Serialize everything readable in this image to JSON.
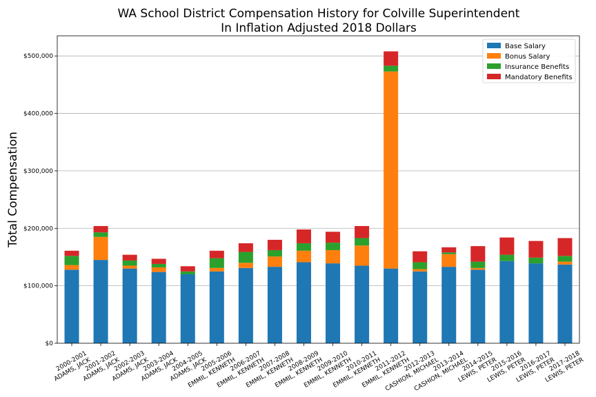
{
  "chart_data": {
    "type": "bar",
    "stacked": true,
    "title": "WA School District Compensation History for Colville Superintendent",
    "subtitle": "In Inflation Adjusted 2018 Dollars",
    "xlabel": "",
    "ylabel": "Total Compensation",
    "ylim": [
      0,
      535000
    ],
    "yticks": [
      0,
      100000,
      200000,
      300000,
      400000,
      500000
    ],
    "ytick_labels": [
      "$0",
      "$100,000",
      "$200,000",
      "$300,000",
      "$400,000",
      "$500,000"
    ],
    "grid": "horizontal",
    "legend_position": "top-right",
    "categories": [
      [
        "2000-2001",
        "ADAMS, JACK"
      ],
      [
        "2001-2002",
        "ADAMS, JACK"
      ],
      [
        "2002-2003",
        "ADAMS, JACK"
      ],
      [
        "2003-2004",
        "ADAMS, JACK"
      ],
      [
        "2004-2005",
        "ADAMS, JACK"
      ],
      [
        "2005-2006",
        "EMMIL, KENNETH"
      ],
      [
        "2006-2007",
        "EMMIL, KENNETH"
      ],
      [
        "2007-2008",
        "EMMIL, KENNETH"
      ],
      [
        "2008-2009",
        "EMMIL, KENNETH"
      ],
      [
        "2009-2010",
        "EMMIL, KENNETH"
      ],
      [
        "2010-2011",
        "EMMIL, KENNETH"
      ],
      [
        "2011-2012",
        "EMMIL, KENNETH"
      ],
      [
        "2012-2013",
        "CASHION, MICHAEL"
      ],
      [
        "2013-2014",
        "CASHION, MICHAEL"
      ],
      [
        "2014-2015",
        "LEWIS, PETER"
      ],
      [
        "2015-2016",
        "LEWIS, PETER"
      ],
      [
        "2016-2017",
        "LEWIS, PETER"
      ],
      [
        "2017-2018",
        "LEWIS, PETER"
      ]
    ],
    "series": [
      {
        "name": "Base Salary",
        "color": "#1f77b4",
        "values": [
          128000,
          145000,
          130000,
          124000,
          120000,
          125000,
          131000,
          133000,
          141000,
          139000,
          135000,
          130000,
          125000,
          133000,
          128000,
          143000,
          139000,
          137000
        ]
      },
      {
        "name": "Bonus Salary",
        "color": "#ff7f0e",
        "values": [
          8000,
          40000,
          5000,
          8000,
          0,
          6000,
          9000,
          18000,
          20000,
          23000,
          35000,
          343000,
          4000,
          22000,
          3000,
          0,
          0,
          5000
        ]
      },
      {
        "name": "Insurance Benefits",
        "color": "#2ca02c",
        "values": [
          16000,
          8000,
          9000,
          6000,
          5000,
          17000,
          19000,
          11000,
          13000,
          13000,
          13000,
          10000,
          12000,
          3000,
          11000,
          11000,
          10000,
          10000
        ]
      },
      {
        "name": "Mandatory Benefits",
        "color": "#d62728",
        "values": [
          9000,
          11000,
          10000,
          9000,
          9000,
          13000,
          15000,
          18000,
          24000,
          19000,
          21000,
          25000,
          19000,
          9000,
          27000,
          30000,
          29000,
          31000
        ]
      }
    ]
  }
}
